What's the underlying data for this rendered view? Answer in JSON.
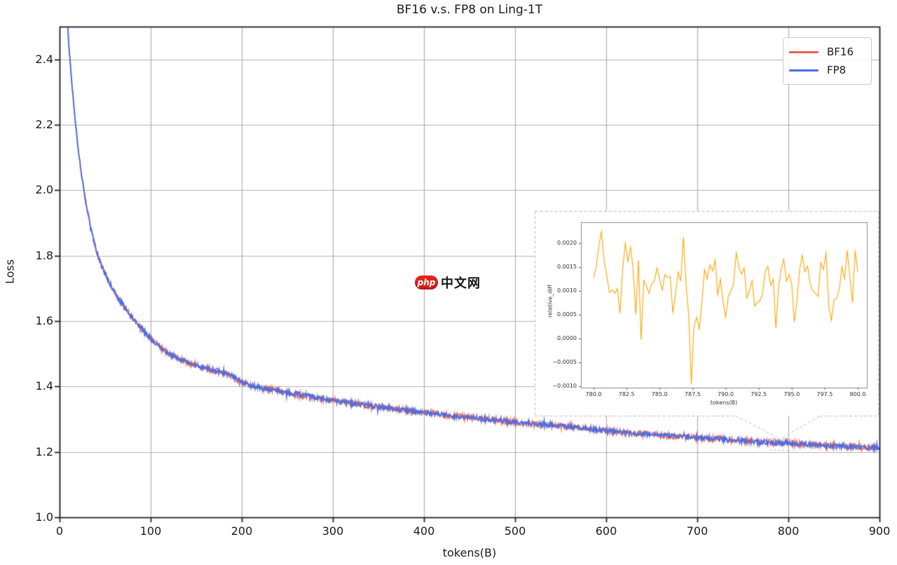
{
  "page": {
    "background": "#ffffff",
    "watermark": {
      "badge_text": "php",
      "site_text": "中文网",
      "badge_color": "#e3231d",
      "text_color": "#141414"
    }
  },
  "chart_data": [
    {
      "id": "main-loss-plot",
      "type": "line",
      "title": "BF16 v.s. FP8 on Ling-1T",
      "xlabel": "tokens(B)",
      "ylabel": "Loss",
      "xlim": [
        0,
        900
      ],
      "ylim": [
        1.0,
        2.5
      ],
      "xticks": [
        0,
        100,
        200,
        300,
        400,
        500,
        600,
        700,
        800,
        900
      ],
      "xtick_labels": [
        "0",
        "100",
        "200",
        "300",
        "400",
        "500",
        "600",
        "700",
        "800",
        "900"
      ],
      "yticks": [
        1.0,
        1.2,
        1.4,
        1.6,
        1.8,
        2.0,
        2.2,
        2.4
      ],
      "ytick_labels": [
        "1.0",
        "1.2",
        "1.4",
        "1.6",
        "1.8",
        "2.0",
        "2.2",
        "2.4"
      ],
      "grid": true,
      "grid_color": "#b0b0b0",
      "spine_color": "#222222",
      "legend": {
        "position": "upper right",
        "entries": [
          {
            "label": "BF16",
            "color": "#e8604e"
          },
          {
            "label": "FP8",
            "color": "#4a6ee5"
          }
        ]
      },
      "inset_indicator": {
        "x_range": [
          780,
          800
        ],
        "style": "dashed",
        "color": "#b9b9b9"
      },
      "keypoints": [
        [
          8,
          2.56
        ],
        [
          10,
          2.45
        ],
        [
          12,
          2.38
        ],
        [
          14,
          2.31
        ],
        [
          16,
          2.25
        ],
        [
          18,
          2.19
        ],
        [
          20,
          2.14
        ],
        [
          23,
          2.07
        ],
        [
          26,
          2.01
        ],
        [
          30,
          1.945
        ],
        [
          34,
          1.885
        ],
        [
          38,
          1.84
        ],
        [
          42,
          1.8
        ],
        [
          46,
          1.77
        ],
        [
          50,
          1.745
        ],
        [
          55,
          1.715
        ],
        [
          60,
          1.69
        ],
        [
          66,
          1.663
        ],
        [
          72,
          1.64
        ],
        [
          80,
          1.61
        ],
        [
          88,
          1.583
        ],
        [
          96,
          1.558
        ],
        [
          104,
          1.535
        ],
        [
          112,
          1.515
        ],
        [
          120,
          1.5
        ],
        [
          130,
          1.487
        ],
        [
          140,
          1.475
        ],
        [
          150,
          1.465
        ],
        [
          160,
          1.456
        ],
        [
          170,
          1.449
        ],
        [
          180,
          1.441
        ],
        [
          190,
          1.431
        ],
        [
          200,
          1.413
        ],
        [
          212,
          1.401
        ],
        [
          225,
          1.394
        ],
        [
          240,
          1.387
        ],
        [
          255,
          1.379
        ],
        [
          270,
          1.372
        ],
        [
          285,
          1.364
        ],
        [
          300,
          1.357
        ],
        [
          315,
          1.351
        ],
        [
          330,
          1.345
        ],
        [
          345,
          1.339
        ],
        [
          360,
          1.334
        ],
        [
          375,
          1.329
        ],
        [
          390,
          1.324
        ],
        [
          405,
          1.319
        ],
        [
          420,
          1.314
        ],
        [
          435,
          1.309
        ],
        [
          450,
          1.305
        ],
        [
          465,
          1.301
        ],
        [
          480,
          1.297
        ],
        [
          500,
          1.291
        ],
        [
          520,
          1.286
        ],
        [
          540,
          1.281
        ],
        [
          560,
          1.276
        ],
        [
          580,
          1.271
        ],
        [
          600,
          1.264
        ],
        [
          620,
          1.259
        ],
        [
          640,
          1.255
        ],
        [
          660,
          1.251
        ],
        [
          680,
          1.247
        ],
        [
          700,
          1.243
        ],
        [
          720,
          1.24
        ],
        [
          740,
          1.236
        ],
        [
          760,
          1.232
        ],
        [
          780,
          1.229
        ],
        [
          800,
          1.226
        ],
        [
          820,
          1.223
        ],
        [
          840,
          1.22
        ],
        [
          860,
          1.217
        ],
        [
          880,
          1.214
        ],
        [
          900,
          1.212
        ]
      ],
      "series": [
        {
          "name": "BF16",
          "color": "#e8604e",
          "noise_amplitude": 0.0095,
          "linewidth": 1.5
        },
        {
          "name": "FP8",
          "color": "#4a6ee5",
          "noise_amplitude": 0.0072,
          "linewidth": 1.8
        }
      ],
      "noise_seed": 42
    },
    {
      "id": "inset-relative-diff",
      "type": "line",
      "title": "",
      "xlabel": "tokens(B)",
      "ylabel": "relative_diff",
      "xlim": [
        779.05,
        800.7
      ],
      "ylim": [
        -0.00103,
        0.00244
      ],
      "xticks": [
        780.0,
        782.5,
        785.0,
        787.5,
        790.0,
        792.5,
        795.0,
        797.5,
        800.0
      ],
      "xtick_labels": [
        "780.0",
        "782.5",
        "785.0",
        "787.5",
        "790.0",
        "792.5",
        "795.0",
        "797.5",
        "800.0"
      ],
      "yticks": [
        -0.001,
        -0.0005,
        0.0,
        0.0005,
        0.001,
        0.0015,
        0.002
      ],
      "ytick_labels": [
        "−0.0010",
        "−0.0005",
        "0.0000",
        "0.0005",
        "0.0010",
        "0.0015",
        "0.0020"
      ],
      "grid": false,
      "line_color": "#ffa500",
      "x_start": 780.0,
      "x_step": 0.2,
      "values": [
        0.00127,
        0.0015,
        0.00195,
        0.00225,
        0.00162,
        0.00133,
        0.00097,
        0.00102,
        0.00095,
        0.00105,
        0.00053,
        0.00145,
        0.002,
        0.00162,
        0.00192,
        0.00145,
        0.0005,
        0.00165,
        -3e-05,
        0.00122,
        0.0011,
        0.00095,
        0.00115,
        0.0012,
        0.00148,
        0.00125,
        0.00102,
        0.00135,
        0.00128,
        0.0013,
        0.00055,
        0.00092,
        0.0014,
        0.00122,
        0.00213,
        0.00115,
        0.0005,
        -0.00095,
        0.00025,
        0.00045,
        0.0002,
        0.00075,
        0.00145,
        0.00125,
        0.00155,
        0.00142,
        0.00165,
        0.00092,
        0.00125,
        0.00078,
        0.00045,
        0.00088,
        0.001,
        0.00115,
        0.0018,
        0.0015,
        0.00135,
        0.00148,
        0.00085,
        0.001,
        0.00122,
        0.00068,
        0.00075,
        0.0008,
        0.00095,
        0.00142,
        0.00152,
        0.00112,
        0.00125,
        0.00022,
        0.00105,
        0.00145,
        0.00167,
        0.0012,
        0.00135,
        0.00115,
        0.00035,
        0.0008,
        0.00145,
        0.00175,
        0.0014,
        0.00152,
        0.00115,
        0.001,
        0.00095,
        0.00088,
        0.0016,
        0.00145,
        0.0018,
        0.0007,
        0.00038,
        0.0008,
        0.00085,
        0.00102,
        0.0015,
        0.00125,
        0.00185,
        0.0013,
        0.00075,
        0.00185,
        0.0014
      ]
    }
  ]
}
